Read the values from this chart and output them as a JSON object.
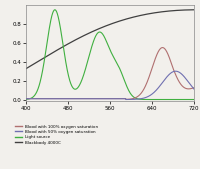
{
  "background_color": "#f2f0ec",
  "legend_entries": [
    "Blood with 100% oxygen saturation",
    "Blood with 50% oxygen saturation",
    "Light source",
    "Blackbody 4000C"
  ],
  "legend_colors": [
    "#b07070",
    "#7070b0",
    "#40b040",
    "#404040"
  ],
  "xlim": [
    400,
    720
  ],
  "ylim": [
    0,
    1.0
  ],
  "yticks": [
    0,
    0.2,
    0.4,
    0.6,
    0.8
  ],
  "xticks": [
    400,
    480,
    560,
    640,
    720
  ]
}
